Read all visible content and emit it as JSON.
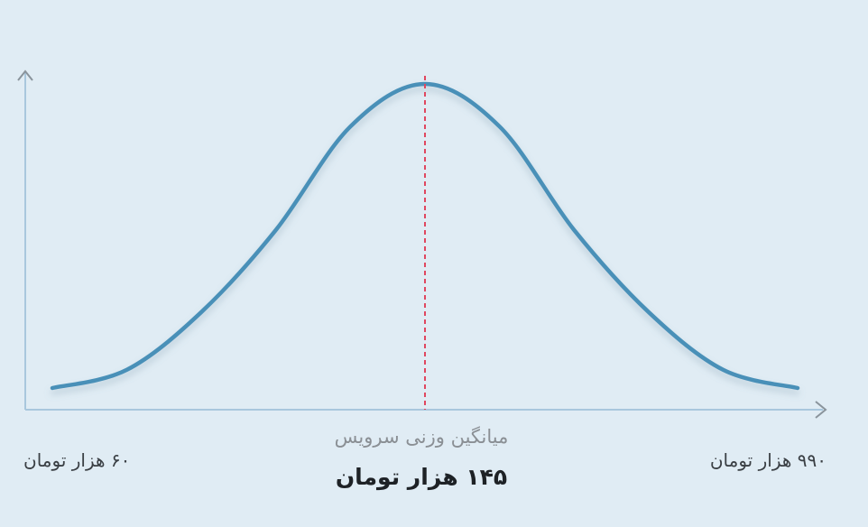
{
  "chart_data": {
    "type": "line",
    "title": "",
    "xlabel": "",
    "ylabel": "",
    "x_min_label": "۶۰ هزار تومان",
    "x_max_label": "۹۹۰ هزار تومان",
    "mean_caption": "میانگین وزنی سرویس",
    "mean_value_label": "۱۴۵ هزار تومان",
    "x": [
      0,
      0.1,
      0.2,
      0.3,
      0.4,
      0.5,
      0.6,
      0.7,
      0.8,
      0.9,
      1.0
    ],
    "y": [
      0.0,
      0.06,
      0.25,
      0.52,
      0.86,
      1.0,
      0.86,
      0.52,
      0.25,
      0.06,
      0.0
    ],
    "mean_x": 0.5,
    "grid": false,
    "colors": {
      "curve": "#4a90b8",
      "mean_line": "#e0475f",
      "axis": "#a9c7dd",
      "arrow": "#8a949c"
    }
  }
}
